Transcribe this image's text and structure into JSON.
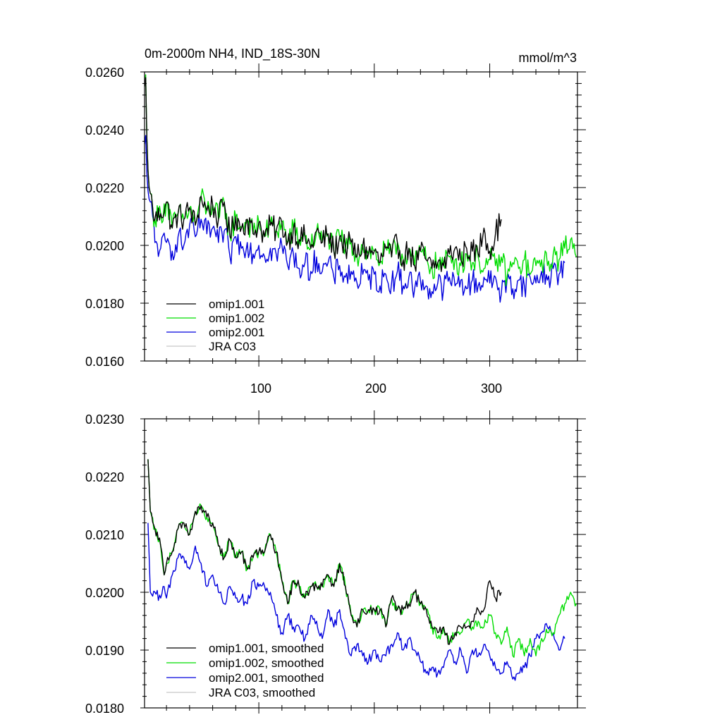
{
  "chart_data": [
    {
      "type": "line",
      "title": "0m-2000m NH4, IND_18S-30N",
      "units": "mmol/m^3",
      "xlim": [
        1,
        376
      ],
      "ylim": [
        0.016,
        0.026
      ],
      "yticks": [
        "0.0160",
        "0.0180",
        "0.0200",
        "0.0220",
        "0.0240",
        "0.0260"
      ],
      "xticks": [
        "100",
        "200",
        "300"
      ],
      "legend_position": "bottom-left",
      "series": [
        {
          "name": "omip1.001",
          "color": "#000000",
          "x": [
            1,
            2,
            3,
            4,
            5,
            6,
            8,
            10,
            15,
            20,
            25,
            30,
            35,
            40,
            45,
            50,
            55,
            60,
            65,
            70,
            75,
            80,
            85,
            90,
            95,
            100,
            105,
            110,
            115,
            120,
            125,
            130,
            135,
            140,
            145,
            150,
            155,
            160,
            165,
            170,
            175,
            180,
            185,
            190,
            195,
            200,
            205,
            210,
            215,
            220,
            225,
            230,
            235,
            240,
            245,
            250,
            255,
            260,
            265,
            270,
            275,
            280,
            285,
            290,
            295,
            300,
            305,
            310
          ],
          "values": [
            0.0255,
            0.0258,
            0.0237,
            0.0226,
            0.022,
            0.0218,
            0.0213,
            0.0209,
            0.0211,
            0.0215,
            0.0206,
            0.0211,
            0.0209,
            0.0213,
            0.0207,
            0.0217,
            0.0212,
            0.0214,
            0.0209,
            0.0215,
            0.0203,
            0.021,
            0.0206,
            0.0209,
            0.0204,
            0.0208,
            0.0203,
            0.0207,
            0.0205,
            0.0208,
            0.0201,
            0.0206,
            0.0202,
            0.0203,
            0.0199,
            0.0205,
            0.0201,
            0.0204,
            0.0198,
            0.0203,
            0.0199,
            0.0201,
            0.0196,
            0.02,
            0.0197,
            0.0198,
            0.0194,
            0.0199,
            0.0196,
            0.0201,
            0.0195,
            0.0199,
            0.0193,
            0.0198,
            0.0195,
            0.0192,
            0.0194,
            0.0193,
            0.0197,
            0.0199,
            0.0195,
            0.0199,
            0.0198,
            0.0197,
            0.0206,
            0.0198,
            0.0204,
            0.0209
          ]
        },
        {
          "name": "omip1.002",
          "color": "#00dd00",
          "x": [
            1,
            2,
            3,
            4,
            5,
            6,
            8,
            10,
            15,
            20,
            25,
            30,
            35,
            40,
            45,
            50,
            55,
            60,
            65,
            70,
            75,
            80,
            85,
            90,
            95,
            100,
            105,
            110,
            115,
            120,
            125,
            130,
            135,
            140,
            145,
            150,
            155,
            160,
            165,
            170,
            175,
            180,
            185,
            190,
            195,
            200,
            205,
            210,
            215,
            220,
            225,
            230,
            235,
            240,
            245,
            250,
            255,
            260,
            265,
            270,
            275,
            280,
            285,
            290,
            295,
            300,
            305,
            310,
            315,
            320,
            325,
            330,
            335,
            340,
            345,
            350,
            355,
            360,
            365,
            370,
            375
          ],
          "values": [
            0.0255,
            0.0259,
            0.0237,
            0.0226,
            0.022,
            0.0218,
            0.0213,
            0.0209,
            0.0211,
            0.0215,
            0.0206,
            0.0211,
            0.0209,
            0.0213,
            0.0207,
            0.0217,
            0.0212,
            0.0214,
            0.0209,
            0.0215,
            0.0203,
            0.021,
            0.0206,
            0.0209,
            0.0204,
            0.0208,
            0.0203,
            0.0207,
            0.0205,
            0.0208,
            0.0201,
            0.0206,
            0.0202,
            0.0203,
            0.0199,
            0.0205,
            0.0201,
            0.0204,
            0.0198,
            0.0203,
            0.0199,
            0.0201,
            0.0196,
            0.02,
            0.0197,
            0.0198,
            0.0194,
            0.0199,
            0.0196,
            0.0201,
            0.0195,
            0.0199,
            0.0193,
            0.0198,
            0.0195,
            0.0192,
            0.0194,
            0.0193,
            0.0196,
            0.0195,
            0.0193,
            0.0197,
            0.0194,
            0.0196,
            0.0192,
            0.0195,
            0.0193,
            0.0196,
            0.0189,
            0.0194,
            0.0192,
            0.0195,
            0.019,
            0.0193,
            0.0195,
            0.0193,
            0.0197,
            0.0195,
            0.0199,
            0.0202,
            0.0196
          ]
        },
        {
          "name": "omip2.001",
          "color": "#0000dd",
          "x": [
            1,
            2,
            3,
            4,
            5,
            6,
            8,
            10,
            15,
            20,
            25,
            30,
            35,
            40,
            45,
            50,
            55,
            60,
            65,
            70,
            75,
            80,
            85,
            90,
            95,
            100,
            105,
            110,
            115,
            120,
            125,
            130,
            135,
            140,
            145,
            150,
            155,
            160,
            165,
            170,
            175,
            180,
            185,
            190,
            195,
            200,
            205,
            210,
            215,
            220,
            225,
            230,
            235,
            240,
            245,
            250,
            255,
            260,
            265,
            270,
            275,
            280,
            285,
            290,
            295,
            300,
            305,
            310,
            315,
            320,
            325,
            330,
            335,
            340,
            345,
            350,
            355,
            360,
            365
          ],
          "values": [
            0.0235,
            0.0238,
            0.0225,
            0.0219,
            0.0216,
            0.0215,
            0.021,
            0.0201,
            0.0199,
            0.0201,
            0.0198,
            0.0203,
            0.02,
            0.0207,
            0.0203,
            0.0209,
            0.0204,
            0.0206,
            0.0201,
            0.0205,
            0.0196,
            0.0203,
            0.0199,
            0.0201,
            0.0197,
            0.02,
            0.0196,
            0.0199,
            0.0197,
            0.02,
            0.0193,
            0.0197,
            0.0192,
            0.0194,
            0.0191,
            0.0196,
            0.0191,
            0.0194,
            0.0189,
            0.0193,
            0.0189,
            0.0191,
            0.0187,
            0.019,
            0.0188,
            0.019,
            0.0186,
            0.019,
            0.0187,
            0.0191,
            0.0186,
            0.0189,
            0.0185,
            0.0188,
            0.0186,
            0.0184,
            0.0187,
            0.0185,
            0.0189,
            0.0186,
            0.0188,
            0.0185,
            0.0188,
            0.0186,
            0.0189,
            0.0187,
            0.0189,
            0.0183,
            0.0188,
            0.0185,
            0.0188,
            0.0186,
            0.0189,
            0.0187,
            0.0191,
            0.0188,
            0.0192,
            0.019,
            0.0194
          ]
        },
        {
          "name": "JRA C03",
          "color": "#c8c8c8",
          "x": [],
          "values": []
        }
      ]
    },
    {
      "type": "line",
      "title": "",
      "xlim": [
        1,
        376
      ],
      "ylim": [
        0.018,
        0.023
      ],
      "yticks": [
        "0.0180",
        "0.0190",
        "0.0200",
        "0.0210",
        "0.0220",
        "0.0230"
      ],
      "xticks": [],
      "legend_position": "bottom-left",
      "series": [
        {
          "name": "omip1.001, smoothed",
          "color": "#000000",
          "x": [
            4,
            6,
            10,
            15,
            18,
            20,
            25,
            30,
            35,
            40,
            45,
            50,
            55,
            60,
            65,
            70,
            75,
            80,
            85,
            90,
            95,
            100,
            105,
            110,
            115,
            120,
            125,
            130,
            135,
            140,
            145,
            150,
            155,
            160,
            165,
            170,
            175,
            180,
            185,
            190,
            195,
            200,
            205,
            210,
            215,
            220,
            225,
            230,
            235,
            240,
            245,
            250,
            255,
            260,
            265,
            270,
            275,
            280,
            285,
            290,
            295,
            300,
            305,
            310
          ],
          "values": [
            0.0223,
            0.0214,
            0.0211,
            0.0208,
            0.0203,
            0.0205,
            0.0207,
            0.0211,
            0.0212,
            0.021,
            0.0214,
            0.0215,
            0.0213,
            0.0212,
            0.0208,
            0.0206,
            0.0209,
            0.0206,
            0.0207,
            0.0204,
            0.0206,
            0.0207,
            0.0207,
            0.021,
            0.0207,
            0.0202,
            0.0198,
            0.0202,
            0.0201,
            0.0199,
            0.0201,
            0.0201,
            0.0201,
            0.0203,
            0.0201,
            0.0205,
            0.0201,
            0.0196,
            0.0194,
            0.0197,
            0.0197,
            0.0197,
            0.0197,
            0.0194,
            0.0199,
            0.0197,
            0.0197,
            0.0198,
            0.02,
            0.0198,
            0.0197,
            0.0194,
            0.0193,
            0.0194,
            0.0191,
            0.0193,
            0.0194,
            0.0194,
            0.0195,
            0.0197,
            0.0197,
            0.0202,
            0.0199,
            0.02
          ]
        },
        {
          "name": "omip1.002, smoothed",
          "color": "#00dd00",
          "x": [
            4,
            6,
            10,
            15,
            18,
            20,
            25,
            30,
            35,
            40,
            45,
            50,
            55,
            60,
            65,
            70,
            75,
            80,
            85,
            90,
            95,
            100,
            105,
            110,
            115,
            120,
            125,
            130,
            135,
            140,
            145,
            150,
            155,
            160,
            165,
            170,
            175,
            180,
            185,
            190,
            195,
            200,
            205,
            210,
            215,
            220,
            225,
            230,
            235,
            240,
            245,
            250,
            255,
            260,
            265,
            270,
            275,
            280,
            285,
            290,
            295,
            300,
            305,
            310,
            315,
            320,
            325,
            330,
            335,
            340,
            345,
            350,
            355,
            360,
            365,
            370,
            375
          ],
          "values": [
            0.0223,
            0.0214,
            0.0211,
            0.0208,
            0.0203,
            0.0205,
            0.0207,
            0.0211,
            0.0212,
            0.021,
            0.0214,
            0.0215,
            0.0213,
            0.0212,
            0.0208,
            0.0206,
            0.0209,
            0.0206,
            0.0207,
            0.0204,
            0.0206,
            0.0207,
            0.0207,
            0.021,
            0.0207,
            0.0202,
            0.0198,
            0.0202,
            0.0201,
            0.0199,
            0.0201,
            0.0201,
            0.0201,
            0.0203,
            0.0201,
            0.0205,
            0.0201,
            0.0196,
            0.0194,
            0.0197,
            0.0197,
            0.0197,
            0.0197,
            0.0194,
            0.0199,
            0.0197,
            0.0197,
            0.0198,
            0.02,
            0.0198,
            0.0197,
            0.0194,
            0.0192,
            0.0194,
            0.0191,
            0.0193,
            0.0193,
            0.0195,
            0.0194,
            0.0195,
            0.0194,
            0.0196,
            0.0193,
            0.0191,
            0.0194,
            0.0189,
            0.0192,
            0.0189,
            0.0192,
            0.0189,
            0.0192,
            0.0193,
            0.0193,
            0.0196,
            0.0198,
            0.02,
            0.0198
          ]
        },
        {
          "name": "omip2.001, smoothed",
          "color": "#0000dd",
          "x": [
            4,
            6,
            10,
            15,
            18,
            20,
            25,
            30,
            35,
            40,
            45,
            50,
            55,
            60,
            65,
            70,
            75,
            80,
            85,
            90,
            95,
            100,
            105,
            110,
            115,
            120,
            125,
            130,
            135,
            140,
            145,
            150,
            155,
            160,
            165,
            170,
            175,
            180,
            185,
            190,
            195,
            200,
            205,
            210,
            215,
            220,
            225,
            230,
            235,
            240,
            245,
            250,
            255,
            260,
            265,
            270,
            275,
            280,
            285,
            290,
            295,
            300,
            305,
            310,
            315,
            320,
            325,
            330,
            335,
            340,
            345,
            350,
            355,
            360,
            365
          ],
          "values": [
            0.0212,
            0.02,
            0.02,
            0.0199,
            0.0201,
            0.0199,
            0.0203,
            0.0206,
            0.0206,
            0.0204,
            0.0208,
            0.0205,
            0.0201,
            0.0203,
            0.02,
            0.0198,
            0.0201,
            0.0199,
            0.0199,
            0.0198,
            0.0202,
            0.0201,
            0.0201,
            0.02,
            0.0196,
            0.0193,
            0.0196,
            0.0194,
            0.0194,
            0.0192,
            0.0196,
            0.0195,
            0.0192,
            0.0197,
            0.0194,
            0.0197,
            0.0192,
            0.0189,
            0.0191,
            0.0189,
            0.0188,
            0.019,
            0.0188,
            0.0189,
            0.0191,
            0.0193,
            0.019,
            0.0192,
            0.019,
            0.0188,
            0.0186,
            0.0187,
            0.0186,
            0.0187,
            0.019,
            0.0188,
            0.019,
            0.0186,
            0.019,
            0.0189,
            0.0191,
            0.0189,
            0.0187,
            0.0186,
            0.0188,
            0.0185,
            0.0186,
            0.0187,
            0.0189,
            0.0192,
            0.0193,
            0.0194,
            0.0193,
            0.019,
            0.0192
          ]
        },
        {
          "name": "JRA C03, smoothed",
          "color": "#c8c8c8",
          "x": [],
          "values": []
        }
      ]
    }
  ]
}
